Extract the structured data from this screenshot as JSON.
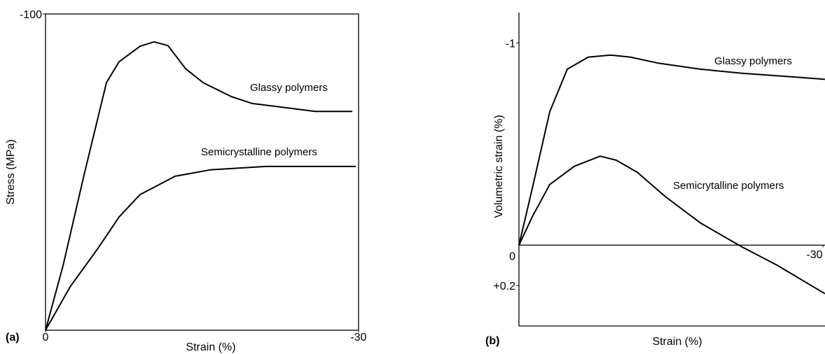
{
  "chart_data": [
    {
      "type": "line",
      "panel_label": "(a)",
      "x_label": "Strain (%)",
      "y_label": "Stress (MPa)",
      "xlim": [
        0,
        -30
      ],
      "xticks": [
        0,
        -30
      ],
      "ylim": [
        0,
        -100
      ],
      "yticks": [
        -100
      ],
      "color": "#000000",
      "series": [
        {
          "name": "Glassy polymers",
          "color": "#000000",
          "x": [
            0,
            -1.68,
            -3.69,
            -5.84,
            -7.05,
            -9.06,
            -10.4,
            -11.74,
            -13.42,
            -15.1,
            -17.79,
            -19.8,
            -22.48,
            -25.84,
            -29.4
          ],
          "values": [
            0,
            -20.4,
            -49.1,
            -78.3,
            -84.9,
            -89.8,
            -91.2,
            -90.0,
            -82.7,
            -78.3,
            -73.9,
            -71.7,
            -70.6,
            -69.2,
            -69.2
          ]
        },
        {
          "name": "Semicrystalline polymers",
          "color": "#000000",
          "x": [
            0,
            -2.35,
            -5.03,
            -7.05,
            -9.06,
            -12.42,
            -15.77,
            -21.14,
            -29.73
          ],
          "values": [
            0,
            -13.7,
            -25.9,
            -35.8,
            -42.9,
            -48.7,
            -50.7,
            -51.8,
            -51.8
          ]
        }
      ]
    },
    {
      "type": "line",
      "panel_label": "(b)",
      "x_label": "Strain (%)",
      "y_label": "Volumetric strain (%)",
      "xlim": [
        0,
        -30
      ],
      "xticks": [
        -30
      ],
      "ylim": [
        0.4,
        -1.15
      ],
      "yticks": [
        -1,
        0,
        {
          "value": 0.2,
          "label": "+0.2"
        }
      ],
      "color": "#000000",
      "series": [
        {
          "name": "Glassy polymers",
          "color": "#000000",
          "x": [
            0,
            -1.31,
            -3.04,
            -4.77,
            -6.84,
            -9.06,
            -10.99,
            -13.76,
            -17.9,
            -22.05,
            -27.58,
            -30.2
          ],
          "values": [
            0,
            -0.28,
            -0.66,
            -0.87,
            -0.93,
            -0.94,
            -0.93,
            -0.9,
            -0.87,
            -0.85,
            -0.83,
            -0.82
          ]
        },
        {
          "name": "Semicrytalline polymers",
          "color": "#000000",
          "x": [
            0,
            -1.31,
            -3.04,
            -5.46,
            -8.02,
            -9.61,
            -11.68,
            -14.45,
            -17.9,
            -22.05,
            -25.51,
            -30.2
          ],
          "values": [
            0,
            -0.14,
            -0.3,
            -0.39,
            -0.44,
            -0.42,
            -0.36,
            -0.24,
            -0.11,
            0.01,
            0.1,
            0.24
          ]
        }
      ]
    }
  ]
}
